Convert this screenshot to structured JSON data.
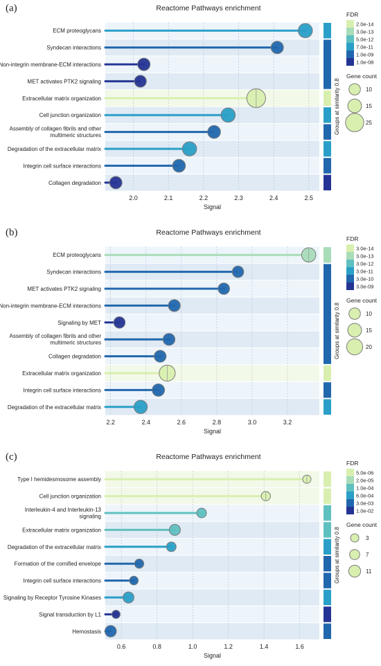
{
  "colors": {
    "fdr_scale": [
      "#d8efb0",
      "#a9dcb9",
      "#5fc0c0",
      "#2a9fc7",
      "#2167ad",
      "#253494"
    ],
    "band_light": "#edf5fb",
    "band_alt": "#dfeaf4",
    "grid": "#b6c4d2"
  },
  "chart_data": [
    {
      "panel_label": "(a)",
      "type": "scatter",
      "title": "Reactome Pathways enrichment",
      "xlabel": "Signal",
      "ylabel": "",
      "xlim": [
        1.92,
        2.53
      ],
      "xticks": [
        "2.0",
        "2.1",
        "2.2",
        "2.3",
        "2.4",
        "2.5"
      ],
      "xtick_values": [
        2.0,
        2.1,
        2.2,
        2.3,
        2.4,
        2.5
      ],
      "grid": true,
      "legend_position": "right",
      "group_axis_label": "Groups at similarity 0.8",
      "fdr_legend": {
        "title": "FDR",
        "labels": [
          "2.0e-14",
          "3.0e-13",
          "5.0e-12",
          "7.0e-11",
          "1.0e-09",
          "1.0e-08"
        ]
      },
      "size_legend": {
        "title": "Gene count",
        "labels": [
          "10",
          "15",
          "25"
        ],
        "values": [
          10,
          15,
          25
        ]
      },
      "group_bars": [
        {
          "start": 0,
          "end": 0,
          "color": 3
        },
        {
          "start": 1,
          "end": 3,
          "color": 4
        },
        {
          "start": 4,
          "end": 4,
          "color": 0
        },
        {
          "start": 5,
          "end": 5,
          "color": 3
        },
        {
          "start": 6,
          "end": 6,
          "color": 4
        },
        {
          "start": 7,
          "end": 7,
          "color": 3
        },
        {
          "start": 8,
          "end": 8,
          "color": 4
        },
        {
          "start": 9,
          "end": 9,
          "color": 5
        }
      ],
      "series": [
        {
          "label": "ECM proteoglycans",
          "signal": 2.49,
          "color": 3,
          "count": 16
        },
        {
          "label": "Syndecan interactions",
          "signal": 2.41,
          "color": 4,
          "count": 12
        },
        {
          "label": "Non-integrin membrane-ECM interactions",
          "signal": 2.03,
          "color": 5,
          "count": 12
        },
        {
          "label": "MET activates PTK2 signaling",
          "signal": 2.02,
          "color": 5,
          "count": 11
        },
        {
          "label": "Extracellular matrix organization",
          "signal": 2.35,
          "color": 0,
          "count": 26
        },
        {
          "label": "Cell junction organization",
          "signal": 2.27,
          "color": 3,
          "count": 16
        },
        {
          "label": "Assembly of collagen fibrils and other multimeric structures",
          "signal": 2.23,
          "color": 4,
          "count": 13
        },
        {
          "label": "Degradation of the extracellular matrix",
          "signal": 2.16,
          "color": 3,
          "count": 16
        },
        {
          "label": "Integrin cell surface interactions",
          "signal": 2.13,
          "color": 4,
          "count": 13
        },
        {
          "label": "Collagen degradation",
          "signal": 1.95,
          "color": 5,
          "count": 12
        }
      ]
    },
    {
      "panel_label": "(b)",
      "type": "scatter",
      "title": "Reactome Pathways enrichment",
      "xlabel": "Signal",
      "ylabel": "",
      "xlim": [
        2.17,
        3.38
      ],
      "xticks": [
        "2.2",
        "2.4",
        "2.6",
        "2.8",
        "3.0",
        "3.2"
      ],
      "xtick_values": [
        2.2,
        2.4,
        2.6,
        2.8,
        3.0,
        3.2
      ],
      "grid": true,
      "legend_position": "right",
      "group_axis_label": "Groups at similarity 0.8",
      "fdr_legend": {
        "title": "FDR",
        "labels": [
          "3.0e-14",
          "3.0e-13",
          "3.0e-12",
          "3.0e-11",
          "3.0e-10",
          "3.0e-09"
        ]
      },
      "size_legend": {
        "title": "Gene count",
        "labels": [
          "10",
          "15",
          "20"
        ],
        "values": [
          10,
          15,
          20
        ]
      },
      "group_bars": [
        {
          "start": 0,
          "end": 0,
          "color": 1
        },
        {
          "start": 1,
          "end": 6,
          "color": 4
        },
        {
          "start": 7,
          "end": 7,
          "color": 0
        },
        {
          "start": 8,
          "end": 8,
          "color": 4
        },
        {
          "start": 9,
          "end": 9,
          "color": 3
        }
      ],
      "series": [
        {
          "label": "ECM proteoglycans",
          "signal": 3.32,
          "color": 1,
          "count": 16
        },
        {
          "label": "Syndecan interactions",
          "signal": 2.92,
          "color": 4,
          "count": 10
        },
        {
          "label": "MET activates PTK2 signaling",
          "signal": 2.84,
          "color": 4,
          "count": 10
        },
        {
          "label": "Non-integrin membrane-ECM interactions",
          "signal": 2.56,
          "color": 4,
          "count": 11
        },
        {
          "label": "Signaling by MET",
          "signal": 2.25,
          "color": 5,
          "count": 10
        },
        {
          "label": "Assembly of collagen fibrils and other multimeric structures",
          "signal": 2.53,
          "color": 4,
          "count": 11
        },
        {
          "label": "Collagen degradation",
          "signal": 2.48,
          "color": 4,
          "count": 11
        },
        {
          "label": "Extracellular matrix organization",
          "signal": 2.52,
          "color": 0,
          "count": 20
        },
        {
          "label": "Integrin cell surface interactions",
          "signal": 2.47,
          "color": 4,
          "count": 12
        },
        {
          "label": "Degradation of the extracellular matrix",
          "signal": 2.37,
          "color": 3,
          "count": 14
        }
      ]
    },
    {
      "panel_label": "(c)",
      "type": "scatter",
      "title": "Reactome Pathways enrichment",
      "xlabel": "Signal",
      "ylabel": "",
      "xlim": [
        0.51,
        1.71
      ],
      "xticks": [
        "0.6",
        "0.8",
        "1.0",
        "1.2",
        "1.4",
        "1.6"
      ],
      "xtick_values": [
        0.6,
        0.8,
        1.0,
        1.2,
        1.4,
        1.6
      ],
      "grid": true,
      "legend_position": "right",
      "group_axis_label": "Groups at similarity 0.8",
      "fdr_legend": {
        "title": "FDR",
        "labels": [
          "5.0e-06",
          "2.0e-05",
          "1.0e-04",
          "6.0e-04",
          "3.0e-03",
          "1.0e-02"
        ]
      },
      "size_legend": {
        "title": "Gene count",
        "labels": [
          "3",
          "7",
          "11"
        ],
        "values": [
          3,
          7,
          11
        ]
      },
      "group_bars": [
        {
          "start": 0,
          "end": 0,
          "color": 0
        },
        {
          "start": 1,
          "end": 1,
          "color": 0
        },
        {
          "start": 2,
          "end": 2,
          "color": 2
        },
        {
          "start": 3,
          "end": 3,
          "color": 2
        },
        {
          "start": 4,
          "end": 4,
          "color": 3
        },
        {
          "start": 5,
          "end": 5,
          "color": 4
        },
        {
          "start": 6,
          "end": 6,
          "color": 4
        },
        {
          "start": 7,
          "end": 7,
          "color": 3
        },
        {
          "start": 8,
          "end": 8,
          "color": 5
        },
        {
          "start": 9,
          "end": 9,
          "color": 4
        }
      ],
      "series": [
        {
          "label": "Type I hemidesmosome assembly",
          "signal": 1.64,
          "color": 0,
          "count": 3
        },
        {
          "label": "Cell junction organization",
          "signal": 1.41,
          "color": 0,
          "count": 5
        },
        {
          "label": "Interleukin-4 and Interleukin-13 signaling",
          "signal": 1.05,
          "color": 2,
          "count": 6
        },
        {
          "label": "Extracellular matrix organization",
          "signal": 0.9,
          "color": 2,
          "count": 9
        },
        {
          "label": "Degradation of the extracellular matrix",
          "signal": 0.88,
          "color": 3,
          "count": 6
        },
        {
          "label": "Formation of the cornified envelope",
          "signal": 0.7,
          "color": 4,
          "count": 5
        },
        {
          "label": "Integrin cell surface interactions",
          "signal": 0.67,
          "color": 4,
          "count": 4
        },
        {
          "label": "Signaling by Receptor Tyrosine Kinases",
          "signal": 0.64,
          "color": 3,
          "count": 9
        },
        {
          "label": "Signal transduction by L1",
          "signal": 0.57,
          "color": 5,
          "count": 3
        },
        {
          "label": "Hemostasis",
          "signal": 0.54,
          "color": 4,
          "count": 10
        }
      ]
    }
  ]
}
